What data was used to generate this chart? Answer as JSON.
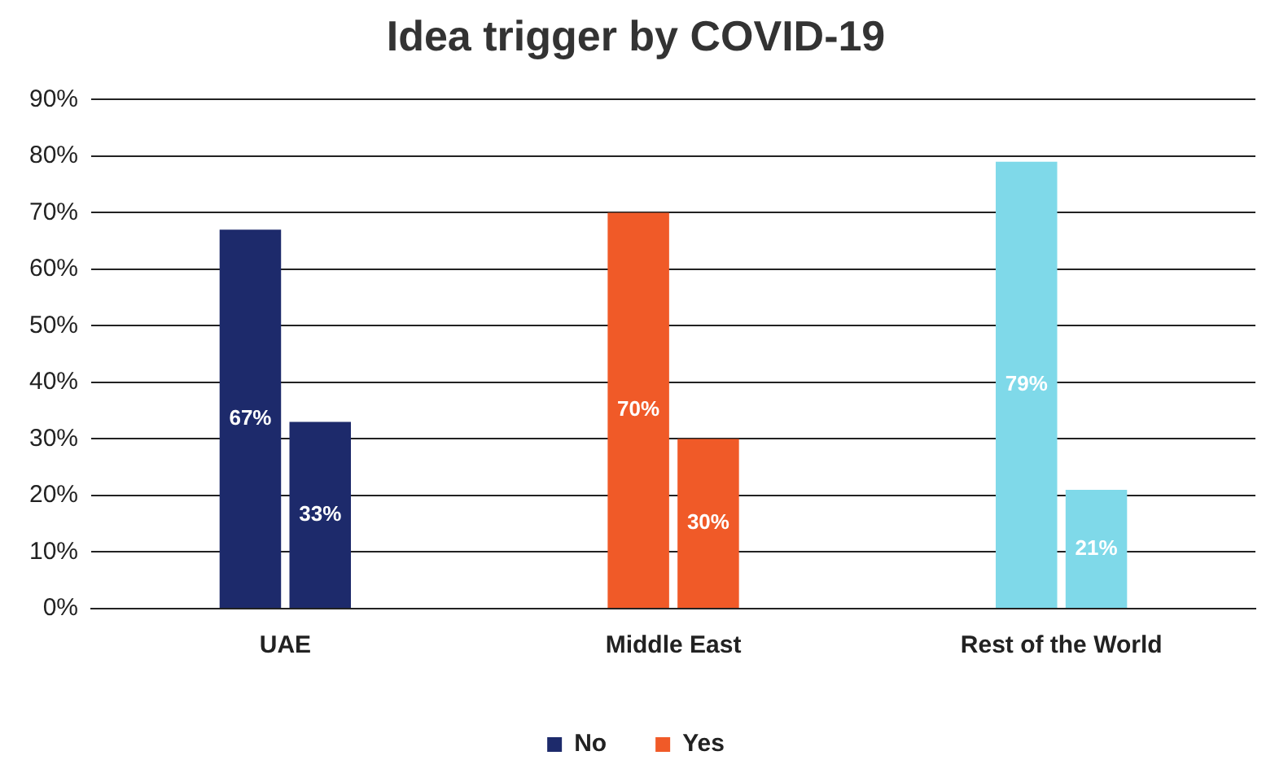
{
  "chart_data": {
    "type": "bar",
    "title": "Idea trigger by COVID-19",
    "categories": [
      "UAE",
      "Middle East",
      "Rest of the World"
    ],
    "series": [
      {
        "name": "No",
        "color": "#1d2a6b",
        "colors": [
          "#1d2a6b",
          "#f05a28",
          "#7fd9e9"
        ],
        "values": [
          67,
          70,
          79
        ],
        "value_labels": [
          "67%",
          "70%",
          "79%"
        ]
      },
      {
        "name": "Yes",
        "color": "#f05a28",
        "colors": [
          "#1d2a6b",
          "#f05a28",
          "#7fd9e9"
        ],
        "values": [
          33,
          30,
          21
        ],
        "value_labels": [
          "33%",
          "30%",
          "21%"
        ]
      }
    ],
    "ylim": [
      0,
      90
    ],
    "yticks": [
      {
        "value": 0,
        "label": "0%"
      },
      {
        "value": 10,
        "label": "10%"
      },
      {
        "value": 20,
        "label": "20%"
      },
      {
        "value": 30,
        "label": "30%"
      },
      {
        "value": 40,
        "label": "40%"
      },
      {
        "value": 50,
        "label": "50%"
      },
      {
        "value": 60,
        "label": "60%"
      },
      {
        "value": 70,
        "label": "70%"
      },
      {
        "value": 80,
        "label": "80%"
      },
      {
        "value": 90,
        "label": "90%"
      }
    ],
    "grid": "y",
    "legend": "bottom"
  }
}
